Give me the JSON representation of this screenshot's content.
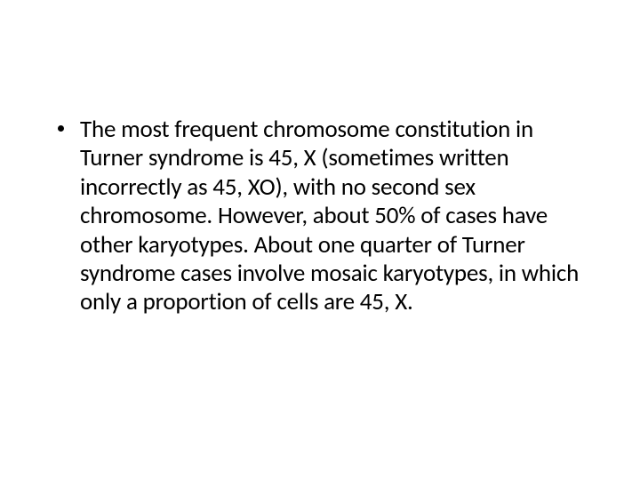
{
  "slide": {
    "background_color": "#ffffff",
    "text_color": "#000000",
    "font_family": "Calibri",
    "font_size": 27,
    "bullets": [
      {
        "text": "The most frequent chromosome constitution in Turner syndrome is 45, X (sometimes written incorrectly as 45, XO), with no second sex chromosome. However, about 50% of cases have other karyotypes. About one quarter of Turner syndrome cases involve mosaic karyotypes, in which only a proportion of cells are 45, X."
      }
    ]
  }
}
